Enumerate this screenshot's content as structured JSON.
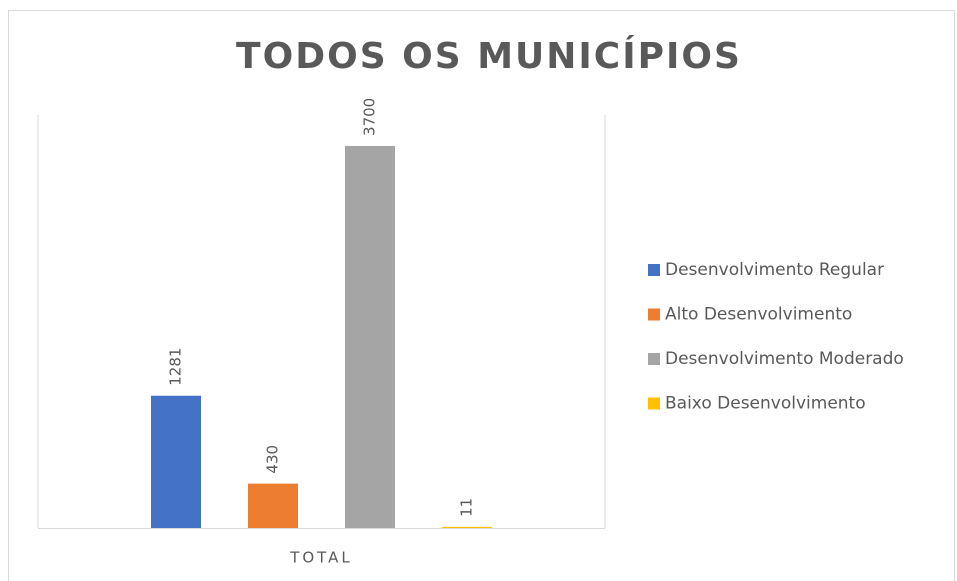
{
  "chart_data": {
    "type": "bar",
    "title": "TODOS OS MUNICÍPIOS",
    "categories": [
      "TOTAL"
    ],
    "series": [
      {
        "name": "Desenvolvimento Regular",
        "color": "#4472c4",
        "values": [
          1281
        ]
      },
      {
        "name": "Alto Desenvolvimento",
        "color": "#ed7d31",
        "values": [
          430
        ]
      },
      {
        "name": "Desenvolvimento Moderado",
        "color": "#a5a5a5",
        "values": [
          3700
        ]
      },
      {
        "name": "Baixo Desenvolvimento",
        "color": "#ffc000",
        "values": [
          11
        ]
      }
    ],
    "ylim": [
      0,
      4000
    ],
    "legend": "right"
  }
}
